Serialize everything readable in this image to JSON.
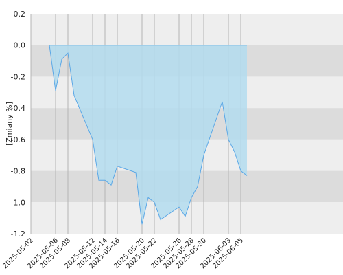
{
  "chart_data": {
    "type": "area",
    "ylabel": "[Zmiany %]",
    "ylim": [
      -1.2,
      0.2
    ],
    "yticks": [
      0.2,
      0.0,
      -0.2,
      -0.4,
      -0.6,
      -0.8,
      -1.0,
      -1.2
    ],
    "ytick_labels": [
      "0.2",
      "0.0",
      "-0.2",
      "-0.4",
      "-0.6",
      "-0.8",
      "-1.0",
      "-1.2"
    ],
    "xlim": [
      "2025-05-02",
      "2025-06-06"
    ],
    "xticks": [
      "2025-05-02",
      "2025-05-06",
      "2025-05-08",
      "2025-05-12",
      "2025-05-14",
      "2025-05-16",
      "2025-05-20",
      "2025-05-22",
      "2025-05-26",
      "2025-05-28",
      "2025-05-30",
      "2025-06-03",
      "2025-06-05"
    ],
    "grid": true,
    "bands": "alternating grey horizontal bands",
    "colors": {
      "fill": "#b3dcee",
      "line": "#5aa7e6",
      "band_light": "#eeeeee",
      "band_dark": "#dcdcdc",
      "grid": "#b4b4b4"
    },
    "series": [
      {
        "x": [
          "2025-05-05",
          "2025-05-06",
          "2025-05-07",
          "2025-05-08",
          "2025-05-09",
          "2025-05-12",
          "2025-05-13",
          "2025-05-14",
          "2025-05-15",
          "2025-05-16",
          "2025-05-19",
          "2025-05-20",
          "2025-05-21",
          "2025-05-22",
          "2025-05-23",
          "2025-05-26",
          "2025-05-27",
          "2025-05-28",
          "2025-05-29",
          "2025-05-30",
          "2025-06-02",
          "2025-06-03",
          "2025-06-04",
          "2025-06-05",
          "2025-06-06"
        ],
        "values": [
          0.0,
          -0.29,
          -0.09,
          -0.05,
          -0.32,
          -0.6,
          -0.86,
          -0.86,
          -0.89,
          -0.77,
          -0.81,
          -1.14,
          -0.97,
          -1.0,
          -1.11,
          -1.03,
          -1.09,
          -0.97,
          -0.9,
          -0.7,
          -0.36,
          -0.6,
          -0.68,
          -0.8,
          -0.83
        ]
      }
    ]
  }
}
